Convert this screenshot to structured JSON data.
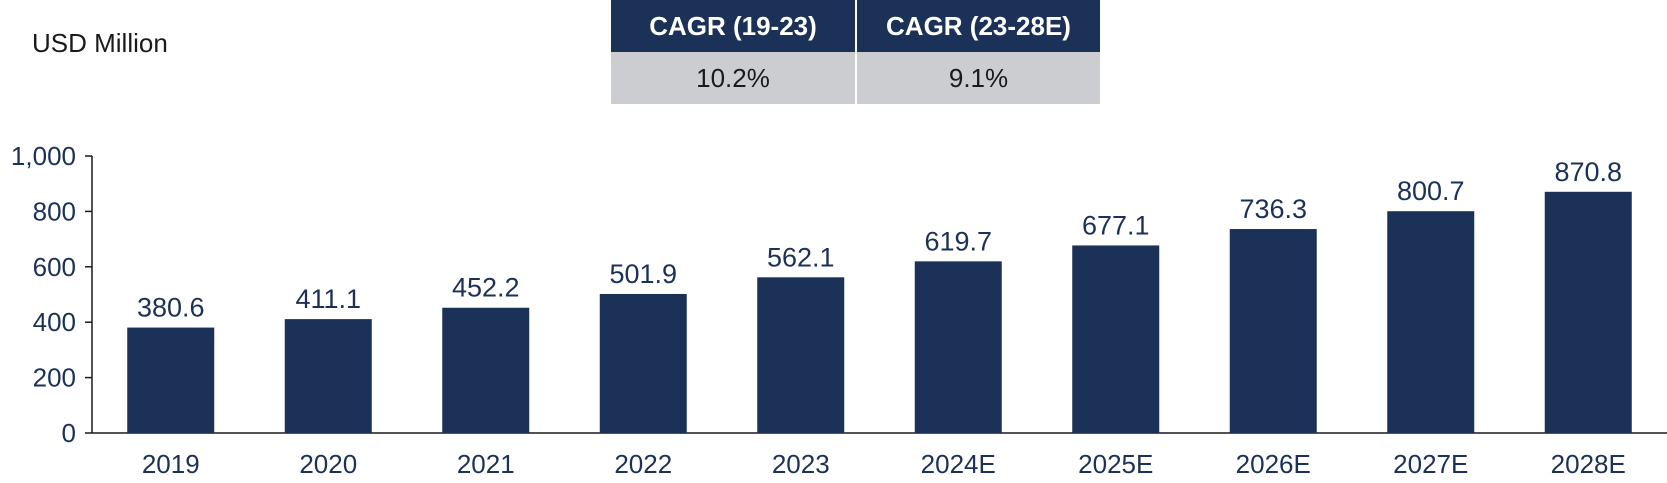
{
  "unit_label": "USD Million",
  "cagr_table": {
    "headers": [
      "CAGR (19-23)",
      "CAGR (23-28E)"
    ],
    "values": [
      "10.2%",
      "9.1%"
    ]
  },
  "colors": {
    "bar": "#1b3157",
    "header_bg": "#1b3157",
    "cell_bg": "#cbcdd1"
  },
  "chart_data": {
    "type": "bar",
    "categories": [
      "2019",
      "2020",
      "2021",
      "2022",
      "2023",
      "2024E",
      "2025E",
      "2026E",
      "2027E",
      "2028E"
    ],
    "values": [
      380.6,
      411.1,
      452.2,
      501.9,
      562.1,
      619.7,
      677.1,
      736.3,
      800.7,
      870.8
    ],
    "data_labels": [
      "380.6",
      "411.1",
      "452.2",
      "501.9",
      "562.1",
      "619.7",
      "677.1",
      "736.3",
      "800.7",
      "870.8"
    ],
    "ylabel": "USD Million",
    "ylim": [
      0,
      1000
    ],
    "yticks": [
      0,
      200,
      400,
      600,
      800,
      1000
    ],
    "ytick_labels": [
      "0",
      "200",
      "400",
      "600",
      "800",
      "1,000"
    ],
    "grid": false,
    "legend": "none"
  }
}
